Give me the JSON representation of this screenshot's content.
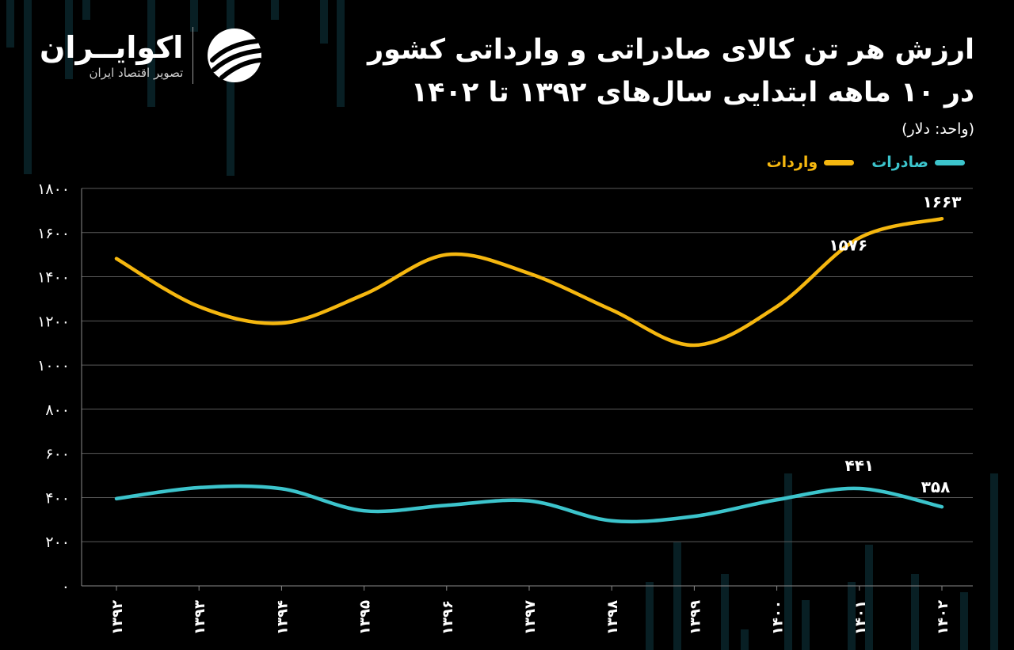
{
  "header": {
    "title_line1": "ارزش هر تن کالای صادراتی و وارداتی کشور",
    "title_line2": "در ۱۰ ماهه ابتدایی سال‌های ۱۳۹۲ تا ۱۴۰۲",
    "unit": "(واحد: دلار)"
  },
  "logo": {
    "name": "اکوایــران",
    "subtitle": "تصویر اقتصاد ایران",
    "icon": "ecoiran-swirl-logo-icon"
  },
  "colors": {
    "background": "#000000",
    "imports": "#f5b70f",
    "exports": "#3cc4cc",
    "grid": "#5a5a5a"
  },
  "chart_data": {
    "type": "line",
    "categories": [
      "۱۳۹۲",
      "۱۳۹۳",
      "۱۳۹۴",
      "۱۳۹۵",
      "۱۳۹۶",
      "۱۳۹۷",
      "۱۳۹۸",
      "۱۳۹۹",
      "۱۴۰۰",
      "۱۴۰۱",
      "۱۴۰۲"
    ],
    "series": [
      {
        "name": "واردات",
        "color": "#f5b70f",
        "values": [
          1482,
          1265,
          1190,
          1320,
          1500,
          1415,
          1250,
          1090,
          1265,
          1576,
          1663
        ]
      },
      {
        "name": "صادرات",
        "color": "#3cc4cc",
        "values": [
          395,
          445,
          440,
          340,
          365,
          385,
          295,
          315,
          390,
          441,
          358
        ]
      }
    ],
    "yticks": [
      "۰",
      "۲۰۰",
      "۴۰۰",
      "۶۰۰",
      "۸۰۰",
      "۱۰۰۰",
      "۱۲۰۰",
      "۱۴۰۰",
      "۱۶۰۰",
      "۱۸۰۰"
    ],
    "ylim": [
      0,
      1800
    ],
    "grid": true,
    "legend_position": "top-right",
    "data_labels": [
      {
        "series": 0,
        "index": 10,
        "text": "۱۶۶۳"
      },
      {
        "series": 0,
        "index": 9,
        "text": "۱۵۷۶"
      },
      {
        "series": 1,
        "index": 9,
        "text": "۴۴۱"
      },
      {
        "series": 1,
        "index": 10,
        "text": "۳۵۸"
      }
    ]
  }
}
